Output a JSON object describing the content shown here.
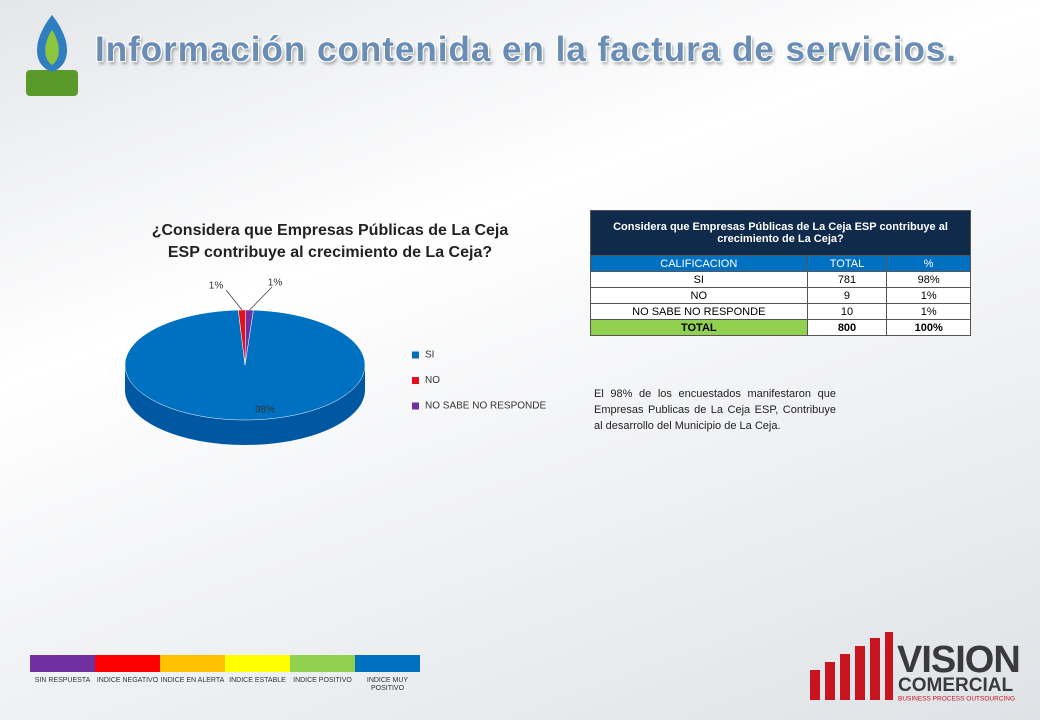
{
  "heading": "Información contenida en la factura de servicios.",
  "chart_data": {
    "type": "pie",
    "title": "¿Considera que Empresas Públicas de La Ceja ESP contribuye al crecimiento de La Ceja?",
    "categories": [
      "SI",
      "NO",
      "NO SABE NO RESPONDE"
    ],
    "values": [
      98,
      1,
      1
    ],
    "value_labels": [
      "98%",
      "1%",
      "1%"
    ],
    "colors": [
      "#0070c0",
      "#e3101e",
      "#7030a0"
    ],
    "legend": "right"
  },
  "table": {
    "title": "Considera que Empresas Públicas de La Ceja ESP contribuye al crecimiento de La Ceja?",
    "header": [
      "CALIFICACION",
      "TOTAL",
      "%"
    ],
    "rows": [
      [
        "SI",
        "781",
        "98%"
      ],
      [
        "NO",
        "9",
        "1%"
      ],
      [
        "NO SABE NO RESPONDE",
        "10",
        "1%"
      ]
    ],
    "total": [
      "TOTAL",
      "800",
      "100%"
    ]
  },
  "paragraph": "El 98% de los encuestados manifestaron que Empresas Publicas de La Ceja ESP, Contribuye al desarrollo del Municipio de La Ceja.",
  "scale": [
    {
      "label": "SIN RESPUESTA",
      "color": "#7030a0"
    },
    {
      "label": "INDICE NEGATIVO",
      "color": "#ff0000"
    },
    {
      "label": "INDICE EN ALERTA",
      "color": "#ffc000"
    },
    {
      "label": "INDICE ESTABLE",
      "color": "#ffff00"
    },
    {
      "label": "INDICE POSITIVO",
      "color": "#92d050"
    },
    {
      "label": "INDICE MUY POSITIVO",
      "color": "#0070c0"
    }
  ],
  "brand": {
    "name": "VISION",
    "sub": "COMERCIAL",
    "tagline": "BUSINESS PROCESS OUTSOURCING"
  }
}
